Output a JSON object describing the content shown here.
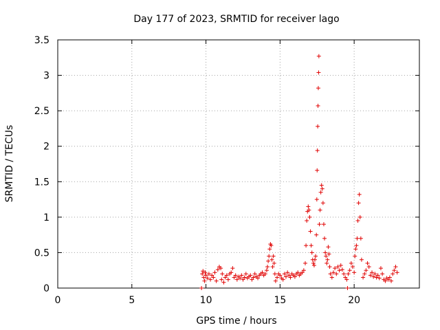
{
  "chart_data": {
    "type": "scatter",
    "title": "Day 177 of 2023, SRMTID for receiver lago",
    "xlabel": "GPS time / hours",
    "ylabel": "SRMTID / TECUs",
    "xlim": [
      0,
      24.4
    ],
    "ylim": [
      0,
      3.5
    ],
    "xticks": [
      0,
      5,
      10,
      15,
      20
    ],
    "xtick_labels": [
      "0",
      "5",
      "10",
      "15",
      "20"
    ],
    "yticks": [
      0,
      0.5,
      1,
      1.5,
      2,
      2.5,
      3,
      3.5
    ],
    "ytick_labels": [
      "0",
      "0.5",
      "1",
      "1.5",
      "2",
      "2.5",
      "3",
      "3.5"
    ],
    "grid": true,
    "marker": "+",
    "color": "#e00000",
    "series": [
      {
        "name": "SRMTID",
        "points": [
          [
            9.7,
            0.0
          ],
          [
            9.75,
            0.2
          ],
          [
            9.8,
            0.24
          ],
          [
            9.85,
            0.15
          ],
          [
            9.9,
            0.1
          ],
          [
            9.95,
            0.22
          ],
          [
            10.0,
            0.18
          ],
          [
            10.1,
            0.14
          ],
          [
            10.2,
            0.2
          ],
          [
            10.3,
            0.12
          ],
          [
            10.4,
            0.18
          ],
          [
            10.5,
            0.15
          ],
          [
            10.6,
            0.22
          ],
          [
            10.7,
            0.1
          ],
          [
            10.8,
            0.26
          ],
          [
            10.9,
            0.3
          ],
          [
            11.0,
            0.28
          ],
          [
            11.05,
            0.12
          ],
          [
            11.1,
            0.2
          ],
          [
            11.2,
            0.08
          ],
          [
            11.3,
            0.15
          ],
          [
            11.4,
            0.18
          ],
          [
            11.5,
            0.12
          ],
          [
            11.6,
            0.2
          ],
          [
            11.7,
            0.22
          ],
          [
            11.8,
            0.28
          ],
          [
            11.9,
            0.15
          ],
          [
            12.0,
            0.18
          ],
          [
            12.1,
            0.12
          ],
          [
            12.2,
            0.16
          ],
          [
            12.3,
            0.14
          ],
          [
            12.4,
            0.18
          ],
          [
            12.5,
            0.12
          ],
          [
            12.6,
            0.15
          ],
          [
            12.7,
            0.2
          ],
          [
            12.8,
            0.14
          ],
          [
            12.9,
            0.16
          ],
          [
            13.0,
            0.18
          ],
          [
            13.1,
            0.12
          ],
          [
            13.2,
            0.15
          ],
          [
            13.3,
            0.2
          ],
          [
            13.4,
            0.16
          ],
          [
            13.5,
            0.14
          ],
          [
            13.6,
            0.18
          ],
          [
            13.7,
            0.2
          ],
          [
            13.8,
            0.22
          ],
          [
            13.9,
            0.18
          ],
          [
            14.0,
            0.2
          ],
          [
            14.1,
            0.25
          ],
          [
            14.15,
            0.3
          ],
          [
            14.2,
            0.38
          ],
          [
            14.25,
            0.45
          ],
          [
            14.3,
            0.55
          ],
          [
            14.35,
            0.62
          ],
          [
            14.4,
            0.6
          ],
          [
            14.45,
            0.4
          ],
          [
            14.5,
            0.3
          ],
          [
            14.55,
            0.45
          ],
          [
            14.6,
            0.35
          ],
          [
            14.65,
            0.2
          ],
          [
            14.7,
            0.1
          ],
          [
            14.8,
            0.15
          ],
          [
            14.9,
            0.2
          ],
          [
            15.0,
            0.18
          ],
          [
            15.1,
            0.14
          ],
          [
            15.2,
            0.12
          ],
          [
            15.3,
            0.2
          ],
          [
            15.4,
            0.16
          ],
          [
            15.5,
            0.22
          ],
          [
            15.6,
            0.18
          ],
          [
            15.7,
            0.15
          ],
          [
            15.8,
            0.2
          ],
          [
            15.9,
            0.18
          ],
          [
            16.0,
            0.16
          ],
          [
            16.1,
            0.2
          ],
          [
            16.2,
            0.22
          ],
          [
            16.3,
            0.18
          ],
          [
            16.4,
            0.2
          ],
          [
            16.5,
            0.22
          ],
          [
            16.6,
            0.25
          ],
          [
            16.7,
            0.35
          ],
          [
            16.75,
            0.6
          ],
          [
            16.8,
            0.95
          ],
          [
            16.85,
            1.08
          ],
          [
            16.9,
            1.15
          ],
          [
            16.95,
            1.1
          ],
          [
            17.0,
            1.0
          ],
          [
            17.05,
            0.8
          ],
          [
            17.1,
            0.6
          ],
          [
            17.15,
            0.5
          ],
          [
            17.2,
            0.4
          ],
          [
            17.25,
            0.35
          ],
          [
            17.3,
            0.32
          ],
          [
            17.35,
            0.4
          ],
          [
            17.4,
            0.45
          ],
          [
            17.45,
            0.75
          ],
          [
            17.48,
            1.25
          ],
          [
            17.5,
            1.66
          ],
          [
            17.52,
            1.94
          ],
          [
            17.54,
            2.28
          ],
          [
            17.56,
            2.57
          ],
          [
            17.58,
            2.82
          ],
          [
            17.6,
            3.04
          ],
          [
            17.62,
            3.27
          ],
          [
            17.65,
            0.9
          ],
          [
            17.7,
            1.1
          ],
          [
            17.75,
            1.35
          ],
          [
            17.8,
            1.45
          ],
          [
            17.85,
            1.4
          ],
          [
            17.9,
            1.2
          ],
          [
            17.95,
            0.9
          ],
          [
            18.0,
            0.7
          ],
          [
            18.05,
            0.5
          ],
          [
            18.1,
            0.45
          ],
          [
            18.15,
            0.35
          ],
          [
            18.2,
            0.4
          ],
          [
            18.25,
            0.58
          ],
          [
            18.3,
            0.48
          ],
          [
            18.35,
            0.3
          ],
          [
            18.4,
            0.2
          ],
          [
            18.5,
            0.15
          ],
          [
            18.6,
            0.22
          ],
          [
            18.7,
            0.28
          ],
          [
            18.8,
            0.2
          ],
          [
            18.9,
            0.3
          ],
          [
            19.0,
            0.25
          ],
          [
            19.1,
            0.32
          ],
          [
            19.2,
            0.26
          ],
          [
            19.3,
            0.2
          ],
          [
            19.4,
            0.15
          ],
          [
            19.5,
            0.12
          ],
          [
            19.55,
            0.0
          ],
          [
            19.6,
            0.2
          ],
          [
            19.7,
            0.25
          ],
          [
            19.8,
            0.35
          ],
          [
            19.9,
            0.3
          ],
          [
            20.0,
            0.22
          ],
          [
            20.05,
            0.45
          ],
          [
            20.1,
            0.55
          ],
          [
            20.15,
            0.6
          ],
          [
            20.2,
            0.7
          ],
          [
            20.25,
            0.95
          ],
          [
            20.3,
            1.2
          ],
          [
            20.35,
            1.32
          ],
          [
            20.4,
            1.0
          ],
          [
            20.45,
            0.7
          ],
          [
            20.5,
            0.4
          ],
          [
            20.6,
            0.15
          ],
          [
            20.7,
            0.2
          ],
          [
            20.8,
            0.25
          ],
          [
            20.9,
            0.35
          ],
          [
            21.0,
            0.3
          ],
          [
            21.1,
            0.18
          ],
          [
            21.2,
            0.22
          ],
          [
            21.3,
            0.16
          ],
          [
            21.4,
            0.2
          ],
          [
            21.5,
            0.15
          ],
          [
            21.6,
            0.18
          ],
          [
            21.7,
            0.14
          ],
          [
            21.8,
            0.28
          ],
          [
            21.9,
            0.2
          ],
          [
            22.0,
            0.12
          ],
          [
            22.1,
            0.1
          ],
          [
            22.2,
            0.14
          ],
          [
            22.3,
            0.12
          ],
          [
            22.4,
            0.15
          ],
          [
            22.5,
            0.1
          ],
          [
            22.6,
            0.2
          ],
          [
            22.7,
            0.25
          ],
          [
            22.8,
            0.3
          ],
          [
            22.9,
            0.22
          ]
        ]
      }
    ]
  }
}
